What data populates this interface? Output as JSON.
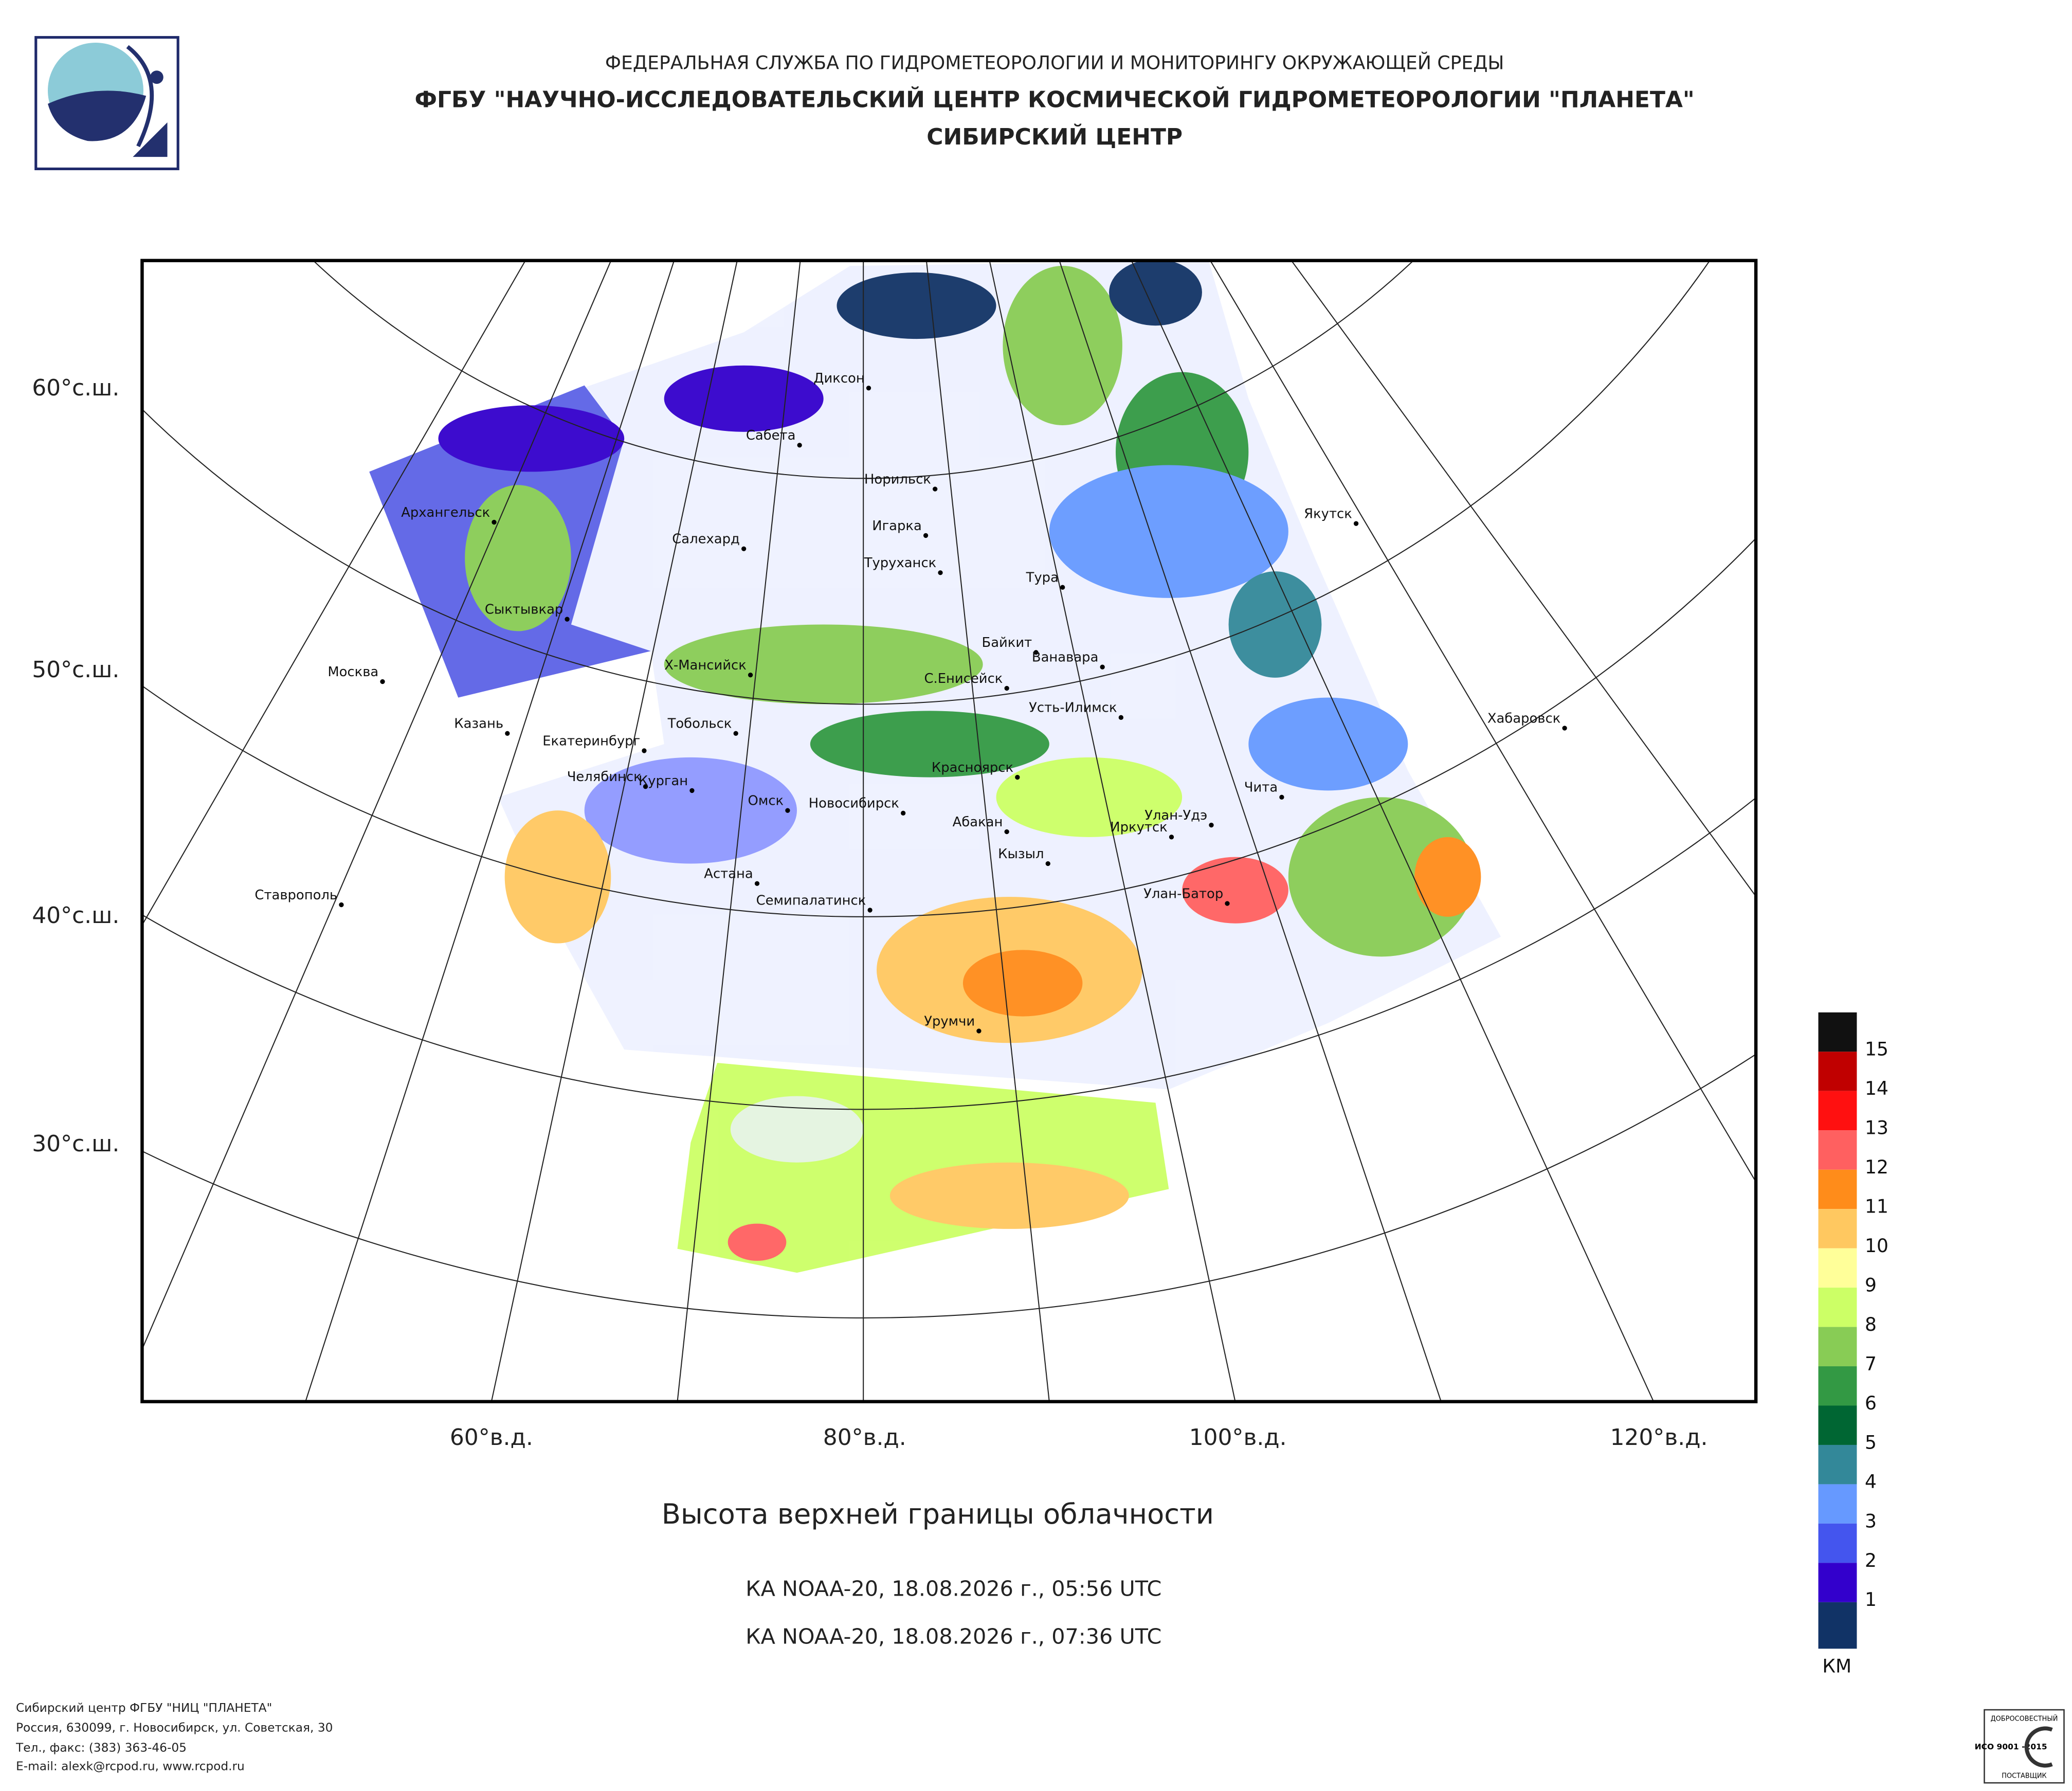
{
  "header": {
    "agency": "ФЕДЕРАЛЬНАЯ СЛУЖБА ПО ГИДРОМЕТЕОРОЛОГИИ И МОНИТОРИНГУ ОКРУЖАЮЩЕЙ СРЕДЫ",
    "organization": "ФГБУ \"НАУЧНО-ИССЛЕДОВАТЕЛЬСКИЙ ЦЕНТР КОСМИЧЕСКОЙ ГИДРОМЕТЕОРОЛОГИИ \"ПЛАНЕТА\"",
    "center": "СИБИРСКИЙ ЦЕНТР"
  },
  "map": {
    "latitude_labels": [
      "60°с.ш.",
      "50°с.ш.",
      "40°с.ш.",
      "30°с.ш."
    ],
    "longitude_labels": [
      "60°в.д.",
      "80°в.д.",
      "100°в.д.",
      "120°в.д."
    ],
    "cities": [
      "Диксон",
      "Сабета",
      "Норильск",
      "Игарка",
      "Архангельск",
      "Салехард",
      "Туруханск",
      "Тура",
      "Якутск",
      "Сыктывкар",
      "Байкит",
      "Ванавара",
      "Москва",
      "Х-Мансийск",
      "С.Енисейск",
      "Усть-Илимск",
      "Хабаровск",
      "Казань",
      "Тобольск",
      "Екатеринбург",
      "Красноярск",
      "Чита",
      "Челябинск",
      "Курган",
      "Омск",
      "Новосибирск",
      "Абакан",
      "Улан-Удэ",
      "Иркутск",
      "Кызыл",
      "Астана",
      "Ставрополь",
      "Семипалатинск",
      "Улан-Батор",
      "Урумчи"
    ]
  },
  "legend": {
    "levels": [
      15,
      14,
      13,
      12,
      11,
      10,
      9,
      8,
      7,
      6,
      5,
      4,
      3,
      2,
      1
    ],
    "colors": [
      "#111111",
      "#c00000",
      "#ff1010",
      "#ff6060",
      "#ff8c1a",
      "#ffc860",
      "#ffff99",
      "#ccff66",
      "#88cc55",
      "#339944",
      "#006633",
      "#338899",
      "#6699ff",
      "#4455ee",
      "#3300cc",
      "#113366"
    ],
    "unit": "КМ"
  },
  "caption": {
    "title": "Высота верхней границы облачности",
    "passes": [
      "КА NOAA-20, 18.08.2026 г., 05:56 UTC",
      "КА NOAA-20, 18.08.2026 г., 07:36 UTC"
    ]
  },
  "footer": {
    "lines": [
      "Сибирский центр ФГБУ \"НИЦ \"ПЛАНЕТА\"",
      "Россия, 630099, г. Новосибирск, ул. Советская, 30",
      "Тел., факс: (383) 363-46-05",
      "E-mail: alexk@rcpod.ru, www.rcpod.ru"
    ]
  },
  "certificate": {
    "top": "ДОБРОСОВЕСТНЫЙ",
    "standard": "ИСО 9001 -2015",
    "bottom": "ПОСТАВЩИК"
  }
}
